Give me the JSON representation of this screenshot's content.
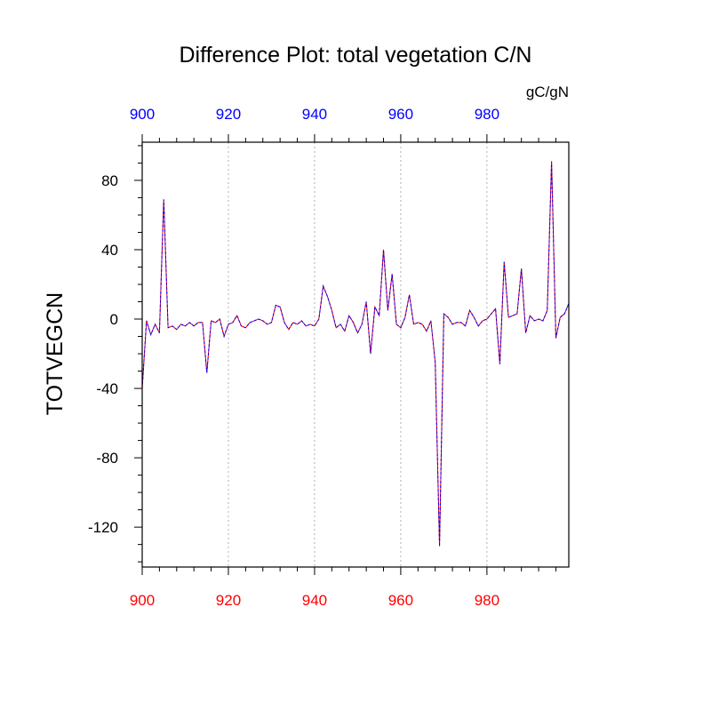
{
  "chart_data": {
    "type": "line",
    "title": "Difference Plot: total vegetation C/N",
    "units": "gC/gN",
    "ylabel": "TOTVEGCN",
    "xlim": [
      900,
      999
    ],
    "ylim": [
      -143,
      102
    ],
    "xticks": [
      900,
      920,
      940,
      960,
      980
    ],
    "xtick_labels": [
      "900",
      "920",
      "940",
      "960",
      "980"
    ],
    "yticks": [
      80,
      40,
      0,
      -40,
      -80,
      -120
    ],
    "ytick_labels": [
      "80",
      "40",
      "0",
      "-40",
      "-80",
      "-120"
    ],
    "top_axis_color": "#0000ff",
    "bottom_axis_color": "#ff0000",
    "grid": "vertical dotted at x ticks",
    "series": [
      {
        "color": "#ff0000",
        "style": "solid",
        "x": [
          900,
          901,
          902,
          903,
          904,
          905,
          906,
          907,
          908,
          909,
          910,
          911,
          912,
          913,
          914,
          915,
          916,
          917,
          918,
          919,
          920,
          921,
          922,
          923,
          924,
          925,
          926,
          927,
          928,
          929,
          930,
          931,
          932,
          933,
          934,
          935,
          936,
          937,
          938,
          939,
          940,
          941,
          942,
          943,
          944,
          945,
          946,
          947,
          948,
          949,
          950,
          951,
          952,
          953,
          954,
          955,
          956,
          957,
          958,
          959,
          960,
          961,
          962,
          963,
          964,
          965,
          966,
          967,
          968,
          969,
          970,
          971,
          972,
          973,
          974,
          975,
          976,
          977,
          978,
          979,
          980,
          981,
          982,
          983,
          984,
          985,
          986,
          987,
          988,
          989,
          990,
          991,
          992,
          993,
          994,
          995,
          996,
          997,
          998,
          999
        ],
        "values": [
          -40,
          -1,
          -9,
          -3,
          -8,
          69,
          -5,
          -4,
          -6,
          -3,
          -4,
          -2,
          -4,
          -2,
          -2,
          -31,
          -1,
          -2,
          0,
          -10,
          -3,
          -2,
          2,
          -4,
          -5,
          -2,
          -1,
          0,
          -1,
          -3,
          -2,
          8,
          7,
          -2,
          -6,
          -2,
          -3,
          -1,
          -4,
          -3,
          -4,
          0,
          19,
          13,
          5,
          -5,
          -3,
          -7,
          2,
          -2,
          -8,
          -3,
          10,
          -20,
          7,
          2,
          40,
          5,
          26,
          -3,
          -5,
          1,
          14,
          -3,
          -2,
          -3,
          -7,
          -1,
          -25,
          -131,
          3,
          1,
          -3,
          -2,
          -2,
          -4,
          5,
          1,
          -4,
          -1,
          0,
          3,
          6,
          -26,
          33,
          1,
          2,
          3,
          29,
          -8,
          2,
          -1,
          0,
          -1,
          5,
          91,
          -11,
          1,
          3,
          9
        ]
      },
      {
        "color": "#0000ff",
        "style": "dashed",
        "x": [
          900,
          901,
          902,
          903,
          904,
          905,
          906,
          907,
          908,
          909,
          910,
          911,
          912,
          913,
          914,
          915,
          916,
          917,
          918,
          919,
          920,
          921,
          922,
          923,
          924,
          925,
          926,
          927,
          928,
          929,
          930,
          931,
          932,
          933,
          934,
          935,
          936,
          937,
          938,
          939,
          940,
          941,
          942,
          943,
          944,
          945,
          946,
          947,
          948,
          949,
          950,
          951,
          952,
          953,
          954,
          955,
          956,
          957,
          958,
          959,
          960,
          961,
          962,
          963,
          964,
          965,
          966,
          967,
          968,
          969,
          970,
          971,
          972,
          973,
          974,
          975,
          976,
          977,
          978,
          979,
          980,
          981,
          982,
          983,
          984,
          985,
          986,
          987,
          988,
          989,
          990,
          991,
          992,
          993,
          994,
          995,
          996,
          997,
          998,
          999
        ],
        "values": [
          -40,
          -1,
          -9,
          -3,
          -8,
          69,
          -5,
          -4,
          -6,
          -3,
          -4,
          -2,
          -4,
          -2,
          -2,
          -31,
          -1,
          -2,
          0,
          -10,
          -3,
          -2,
          2,
          -4,
          -5,
          -2,
          -1,
          0,
          -1,
          -3,
          -2,
          8,
          7,
          -2,
          -6,
          -2,
          -3,
          -1,
          -4,
          -3,
          -4,
          0,
          19,
          13,
          5,
          -5,
          -3,
          -7,
          2,
          -2,
          -8,
          -3,
          10,
          -20,
          7,
          2,
          40,
          5,
          26,
          -3,
          -5,
          1,
          14,
          -3,
          -2,
          -3,
          -7,
          -1,
          -25,
          -131,
          3,
          1,
          -3,
          -2,
          -2,
          -4,
          5,
          1,
          -4,
          -1,
          0,
          3,
          6,
          -26,
          33,
          1,
          2,
          3,
          29,
          -8,
          2,
          -1,
          0,
          -1,
          5,
          91,
          -11,
          1,
          3,
          9
        ]
      }
    ]
  }
}
